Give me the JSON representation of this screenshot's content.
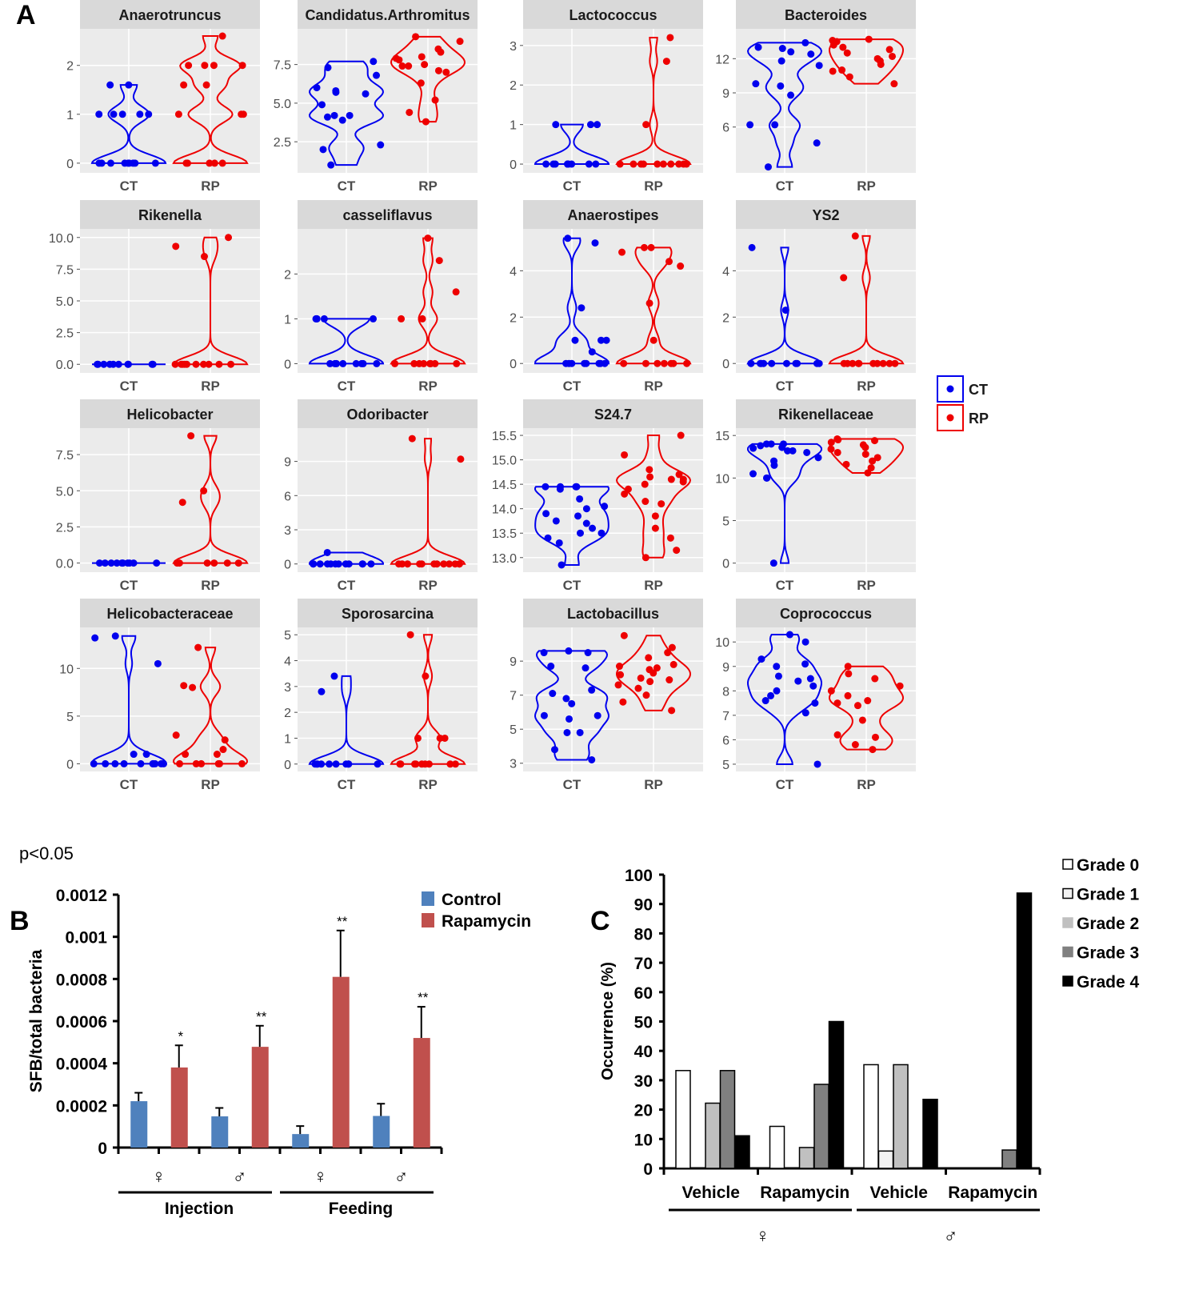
{
  "panel_labels": {
    "a": "A",
    "b": "B",
    "c": "C"
  },
  "footnote": "p<0.05",
  "colors": {
    "ct": "#0000ee",
    "rp": "#ee0000",
    "control": "#4f81bd",
    "rapamycin": "#c0504d",
    "grade0": "#ffffff",
    "grade1": "#f2f2f2",
    "grade2": "#c0c0c0",
    "grade3": "#808080",
    "grade4": "#000000"
  },
  "chart_data": [
    {
      "type": "violin",
      "id": "A",
      "groups": [
        "CT",
        "RP"
      ],
      "legend": {
        "entries": [
          "CT",
          "RP"
        ],
        "placement": "right"
      },
      "panels": [
        {
          "title": "Anaerotruncus",
          "ylim": [
            -0.1,
            2.65
          ],
          "ticks": [
            0,
            1,
            2
          ],
          "tick_labels": [
            "0",
            "1",
            "2"
          ],
          "CT": [
            0,
            0,
            0,
            0,
            0,
            0,
            0,
            0,
            0,
            1,
            1,
            1,
            1,
            1,
            1.6,
            1.6
          ],
          "RP": [
            0,
            0,
            0,
            0,
            0,
            1,
            1,
            1,
            1.6,
            1.6,
            2,
            2,
            2,
            2,
            2.6
          ]
        },
        {
          "title": "Candidatus.Arthromitus",
          "ylim": [
            0.8,
            9.5
          ],
          "ticks": [
            2.5,
            5,
            7.5
          ],
          "tick_labels": [
            "2.5",
            "5.0",
            "7.5"
          ],
          "CT": [
            1,
            2,
            2.3,
            3.9,
            4.1,
            4.2,
            4.2,
            4.9,
            5.6,
            5.7,
            5.8,
            6,
            6.8,
            7.3,
            7.7
          ],
          "RP": [
            3.8,
            4.4,
            5.2,
            6.3,
            7,
            7.1,
            7.4,
            7.4,
            7.5,
            7.8,
            7.9,
            8,
            8.3,
            8.5,
            9,
            9.3
          ]
        },
        {
          "title": "Lactococcus",
          "ylim": [
            -0.1,
            3.3
          ],
          "ticks": [
            0,
            1,
            2,
            3
          ],
          "tick_labels": [
            "0",
            "1",
            "2",
            "3"
          ],
          "CT": [
            0,
            0,
            0,
            0,
            0,
            0,
            0,
            0,
            0,
            0,
            1,
            1,
            1
          ],
          "RP": [
            0,
            0,
            0,
            0,
            0,
            0,
            0,
            0,
            0,
            0,
            1,
            2.6,
            3.2
          ]
        },
        {
          "title": "Bacteroides",
          "ylim": [
            2.4,
            14.2
          ],
          "ticks": [
            6,
            9,
            12
          ],
          "tick_labels": [
            "6",
            "9",
            "12"
          ],
          "CT": [
            2.5,
            4.6,
            6.2,
            6.2,
            8.8,
            9.6,
            9.8,
            11.4,
            11.8,
            12.4,
            12.6,
            12.9,
            13,
            13.4
          ],
          "RP": [
            9.8,
            10.4,
            10.9,
            11,
            11.5,
            11.8,
            12,
            12.2,
            12.5,
            12.8,
            13,
            13.2,
            13.5,
            13.6,
            13.7
          ]
        },
        {
          "title": "Rikenella",
          "ylim": [
            -0.3,
            10.3
          ],
          "ticks": [
            0,
            2.5,
            5,
            7.5,
            10
          ],
          "tick_labels": [
            "0.0",
            "2.5",
            "5.0",
            "7.5",
            "10.0"
          ],
          "CT": [
            0,
            0,
            0,
            0,
            0,
            0,
            0,
            0,
            0,
            0
          ],
          "RP": [
            0,
            0,
            0,
            0,
            0,
            0,
            0,
            0,
            0,
            0,
            8.5,
            9.3,
            10
          ]
        },
        {
          "title": "casseliflavus",
          "ylim": [
            -0.1,
            2.9
          ],
          "ticks": [
            0,
            1,
            2
          ],
          "tick_labels": [
            "0",
            "1",
            "2"
          ],
          "CT": [
            0,
            0,
            0,
            0,
            0,
            0,
            0,
            0,
            1,
            1,
            1,
            1,
            1
          ],
          "RP": [
            0,
            0,
            0,
            0,
            0,
            0,
            0,
            0,
            1,
            1,
            1.6,
            2.3,
            2.8
          ]
        },
        {
          "title": "Anaerostipes",
          "ylim": [
            -0.2,
            5.6
          ],
          "ticks": [
            0,
            2,
            4
          ],
          "tick_labels": [
            "0",
            "2",
            "4"
          ],
          "CT": [
            0,
            0,
            0,
            0,
            0,
            0,
            0,
            0,
            0.5,
            1,
            1,
            1,
            2.4,
            5.2,
            5.4
          ],
          "RP": [
            0,
            0,
            0,
            0,
            0,
            0,
            0,
            1,
            2.6,
            4.2,
            4.4,
            4.8,
            5,
            5
          ]
        },
        {
          "title": "YS2",
          "ylim": [
            -0.2,
            5.6
          ],
          "ticks": [
            0,
            2,
            4
          ],
          "tick_labels": [
            "0",
            "2",
            "4"
          ],
          "CT": [
            0,
            0,
            0,
            0,
            0,
            0,
            0,
            0,
            0,
            0,
            2.3,
            5
          ],
          "RP": [
            0,
            0,
            0,
            0,
            0,
            0,
            0,
            0,
            0,
            0,
            3.7,
            5.5
          ]
        },
        {
          "title": "Helicobacter",
          "ylim": [
            -0.3,
            9
          ],
          "ticks": [
            0,
            2.5,
            5,
            7.5
          ],
          "tick_labels": [
            "0.0",
            "2.5",
            "5.0",
            "7.5"
          ],
          "CT": [
            0,
            0,
            0,
            0,
            0,
            0,
            0,
            0,
            0,
            0
          ],
          "RP": [
            0,
            0,
            0,
            0,
            0,
            0,
            4.2,
            5,
            8.8
          ]
        },
        {
          "title": "Odoribacter",
          "ylim": [
            -0.3,
            11.5
          ],
          "ticks": [
            0,
            3,
            6,
            9
          ],
          "tick_labels": [
            "0",
            "3",
            "6",
            "9"
          ],
          "CT": [
            0,
            0,
            0,
            0,
            0,
            0,
            0,
            0,
            0,
            0,
            0,
            0,
            1
          ],
          "RP": [
            0,
            0,
            0,
            0,
            0,
            0,
            0,
            0,
            0,
            0,
            0,
            0,
            9.2,
            11
          ]
        },
        {
          "title": "S24.7",
          "ylim": [
            12.8,
            15.55
          ],
          "ticks": [
            13,
            13.5,
            14,
            14.5,
            15,
            15.5
          ],
          "tick_labels": [
            "13.0",
            "13.5",
            "14.0",
            "14.5",
            "15.0",
            "15.5"
          ],
          "CT": [
            12.85,
            13.3,
            13.4,
            13.5,
            13.5,
            13.6,
            13.7,
            13.75,
            13.85,
            13.9,
            14,
            14.05,
            14.2,
            14.4,
            14.45,
            14.45,
            14.45,
            14.45
          ],
          "RP": [
            13,
            13.15,
            13.4,
            13.6,
            13.85,
            14.1,
            14.15,
            14.3,
            14.4,
            14.5,
            14.55,
            14.6,
            14.6,
            14.65,
            14.7,
            14.8,
            15.1,
            15.5
          ]
        },
        {
          "title": "Rikenellaceae",
          "ylim": [
            -0.5,
            15.3
          ],
          "ticks": [
            0,
            5,
            10,
            15
          ],
          "tick_labels": [
            "0",
            "5",
            "10",
            "15"
          ],
          "CT": [
            0,
            10,
            10,
            10.5,
            11.5,
            12,
            12.4,
            13,
            13.2,
            13.2,
            13.5,
            13.6,
            13.8,
            14,
            14,
            14
          ],
          "RP": [
            10.6,
            11.2,
            11.6,
            12,
            12.4,
            12.8,
            13,
            13.4,
            13.6,
            13.9,
            14.2,
            14.4,
            14.5,
            14.6
          ]
        },
        {
          "title": "Helicobacteraceae",
          "ylim": [
            -0.3,
            13.8
          ],
          "ticks": [
            0,
            5,
            10
          ],
          "tick_labels": [
            "0",
            "5",
            "10"
          ],
          "CT": [
            0,
            0,
            0,
            0,
            0,
            0,
            0,
            0,
            0,
            0,
            1,
            1,
            10.5,
            13.2,
            13.4
          ],
          "RP": [
            0,
            0,
            0,
            0,
            0,
            0,
            1,
            1,
            1.5,
            2.5,
            3,
            8,
            8.2,
            12.2
          ]
        },
        {
          "title": "Sporosarcina",
          "ylim": [
            -0.1,
            5.1
          ],
          "ticks": [
            0,
            1,
            2,
            3,
            4,
            5
          ],
          "tick_labels": [
            "0",
            "1",
            "2",
            "3",
            "4",
            "5"
          ],
          "CT": [
            0,
            0,
            0,
            0,
            0,
            0,
            0,
            0,
            0,
            0,
            2.8,
            3.4
          ],
          "RP": [
            0,
            0,
            0,
            0,
            0,
            0,
            0,
            0,
            0,
            1,
            1,
            1,
            3.4,
            5
          ]
        },
        {
          "title": "Lactobacillus",
          "ylim": [
            2.8,
            10.7
          ],
          "ticks": [
            3,
            5,
            7,
            9
          ],
          "tick_labels": [
            "3",
            "5",
            "7",
            "9"
          ],
          "CT": [
            3.2,
            3.8,
            4.8,
            4.8,
            5.6,
            5.8,
            5.8,
            6.5,
            6.8,
            7.1,
            7.3,
            8.6,
            8.7,
            9.5,
            9.5,
            9.6
          ],
          "RP": [
            6.1,
            6.6,
            7,
            7.4,
            7.6,
            7.8,
            7.9,
            8,
            8.2,
            8.3,
            8.5,
            8.6,
            8.7,
            8.8,
            9.2,
            9.5,
            9.8,
            10.5
          ]
        },
        {
          "title": "Coprococcus",
          "ylim": [
            4.9,
            10.4
          ],
          "ticks": [
            5,
            6,
            7,
            8,
            9,
            10
          ],
          "tick_labels": [
            "5",
            "6",
            "7",
            "8",
            "9",
            "10"
          ],
          "CT": [
            5,
            7.1,
            7.5,
            7.6,
            7.8,
            8,
            8.2,
            8.4,
            8.5,
            8.6,
            9,
            9.1,
            9.3,
            10,
            10.3
          ],
          "RP": [
            5.6,
            5.8,
            6.1,
            6.2,
            6.8,
            7.4,
            7.5,
            7.6,
            7.8,
            8,
            8.2,
            8.5,
            8.7,
            9
          ]
        }
      ]
    },
    {
      "type": "bar",
      "id": "B",
      "ylabel": "SFB/total bacteria",
      "ylim": [
        0,
        0.0012
      ],
      "ticks": [
        0,
        0.0002,
        0.0004,
        0.0006,
        0.0008,
        0.001,
        0.0012
      ],
      "tick_labels": [
        "0",
        "0.0002",
        "0.0004",
        "0.0006",
        "0.0008",
        "0.001",
        "0.0012"
      ],
      "categories": [
        "♀",
        "♂",
        "♀",
        "♂"
      ],
      "category_groups": [
        {
          "label": "Injection",
          "span": [
            0,
            1
          ]
        },
        {
          "label": "Feeding",
          "span": [
            2,
            3
          ]
        }
      ],
      "series": [
        {
          "name": "Control",
          "values": [
            0.00022,
            0.000148,
            6.4e-05,
            0.00015
          ],
          "errors": [
            4e-05,
            4e-05,
            3.8e-05,
            5.8e-05
          ],
          "sig": [
            "",
            "",
            "",
            ""
          ]
        },
        {
          "name": "Rapamycin",
          "values": [
            0.00038,
            0.000478,
            0.00081,
            0.00052
          ],
          "errors": [
            0.000105,
            0.0001,
            0.00022,
            0.000148
          ],
          "sig": [
            "*",
            "**",
            "**",
            "**"
          ]
        }
      ],
      "legend_placement": "top-right"
    },
    {
      "type": "bar",
      "id": "C",
      "ylabel": "Occurrence (%)",
      "ylim": [
        0,
        100
      ],
      "ticks": [
        0,
        10,
        20,
        30,
        40,
        50,
        60,
        70,
        80,
        90,
        100
      ],
      "tick_labels": [
        "0",
        "10",
        "20",
        "30",
        "40",
        "50",
        "60",
        "70",
        "80",
        "90",
        "100"
      ],
      "categories": [
        "Vehicle",
        "Rapamycin",
        "Vehicle",
        "Rapamycin"
      ],
      "category_groups": [
        {
          "label": "♀",
          "span": [
            0,
            1
          ]
        },
        {
          "label": "♂",
          "span": [
            2,
            3
          ]
        }
      ],
      "series": [
        {
          "name": "Grade 0",
          "values": [
            33.3,
            14.3,
            35.3,
            0
          ]
        },
        {
          "name": "Grade 1",
          "values": [
            0,
            0,
            5.9,
            0
          ]
        },
        {
          "name": "Grade 2",
          "values": [
            22.2,
            7.1,
            35.3,
            0
          ]
        },
        {
          "name": "Grade 3",
          "values": [
            33.3,
            28.6,
            0,
            6.25
          ]
        },
        {
          "name": "Grade 4",
          "values": [
            11.1,
            50,
            23.5,
            93.75
          ]
        }
      ],
      "legend_placement": "top-right"
    }
  ]
}
